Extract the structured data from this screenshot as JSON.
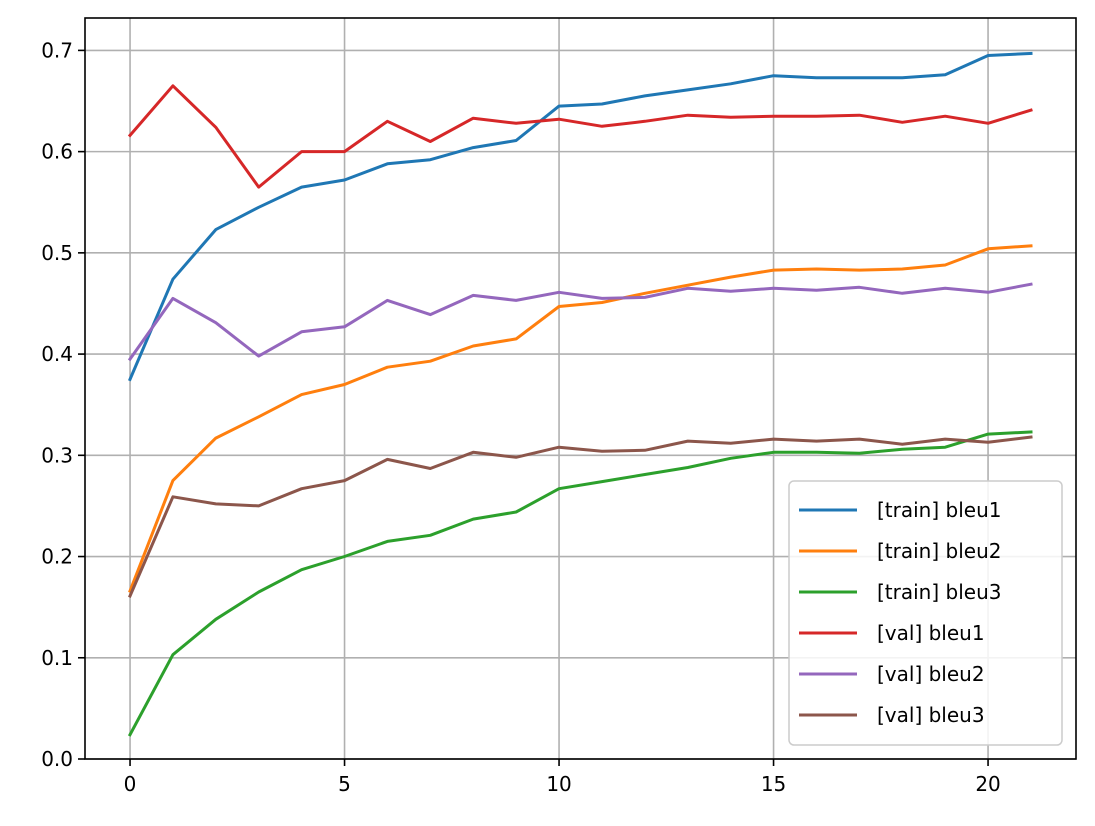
{
  "chart_data": {
    "type": "line",
    "title": "",
    "xlabel": "",
    "ylabel": "",
    "x": [
      0,
      1,
      2,
      3,
      4,
      5,
      6,
      7,
      8,
      9,
      10,
      11,
      12,
      13,
      14,
      15,
      16,
      17,
      18,
      19,
      20,
      21
    ],
    "xlim": [
      -1.05,
      22.05
    ],
    "ylim": [
      0.0,
      0.732
    ],
    "xticks": [
      0,
      5,
      10,
      15,
      20
    ],
    "xtick_labels": [
      "0",
      "5",
      "10",
      "15",
      "20"
    ],
    "yticks": [
      0.0,
      0.1,
      0.2,
      0.3,
      0.4,
      0.5,
      0.6,
      0.7
    ],
    "ytick_labels": [
      "0.0",
      "0.1",
      "0.2",
      "0.3",
      "0.4",
      "0.5",
      "0.6",
      "0.7"
    ],
    "grid": true,
    "legend_position": "lower-right",
    "series": [
      {
        "name": "[train] bleu1",
        "color": "#1f77b4",
        "values": [
          0.375,
          0.474,
          0.523,
          0.545,
          0.565,
          0.572,
          0.588,
          0.592,
          0.604,
          0.611,
          0.645,
          0.647,
          0.655,
          0.661,
          0.667,
          0.675,
          0.673,
          0.673,
          0.673,
          0.676,
          0.695,
          0.697
        ]
      },
      {
        "name": "[train] bleu2",
        "color": "#ff7f0e",
        "values": [
          0.166,
          0.275,
          0.317,
          0.338,
          0.36,
          0.37,
          0.387,
          0.393,
          0.408,
          0.415,
          0.447,
          0.451,
          0.46,
          0.468,
          0.476,
          0.483,
          0.484,
          0.483,
          0.484,
          0.488,
          0.504,
          0.507
        ]
      },
      {
        "name": "[train] bleu3",
        "color": "#2ca02c",
        "values": [
          0.024,
          0.103,
          0.138,
          0.165,
          0.187,
          0.2,
          0.215,
          0.221,
          0.237,
          0.244,
          0.267,
          0.274,
          0.281,
          0.288,
          0.297,
          0.303,
          0.303,
          0.302,
          0.306,
          0.308,
          0.321,
          0.323
        ]
      },
      {
        "name": "[val] bleu1",
        "color": "#d62728",
        "values": [
          0.616,
          0.665,
          0.624,
          0.565,
          0.6,
          0.6,
          0.63,
          0.61,
          0.633,
          0.628,
          0.632,
          0.625,
          0.63,
          0.636,
          0.634,
          0.635,
          0.635,
          0.636,
          0.629,
          0.635,
          0.628,
          0.641
        ]
      },
      {
        "name": "[val] bleu2",
        "color": "#9467bd",
        "values": [
          0.395,
          0.455,
          0.431,
          0.398,
          0.422,
          0.427,
          0.453,
          0.439,
          0.458,
          0.453,
          0.461,
          0.455,
          0.456,
          0.465,
          0.462,
          0.465,
          0.463,
          0.466,
          0.46,
          0.465,
          0.461,
          0.469
        ]
      },
      {
        "name": "[val] bleu3",
        "color": "#8c564b",
        "values": [
          0.161,
          0.259,
          0.252,
          0.25,
          0.267,
          0.275,
          0.296,
          0.287,
          0.303,
          0.298,
          0.308,
          0.304,
          0.305,
          0.314,
          0.312,
          0.316,
          0.314,
          0.316,
          0.311,
          0.316,
          0.313,
          0.318
        ]
      }
    ]
  }
}
